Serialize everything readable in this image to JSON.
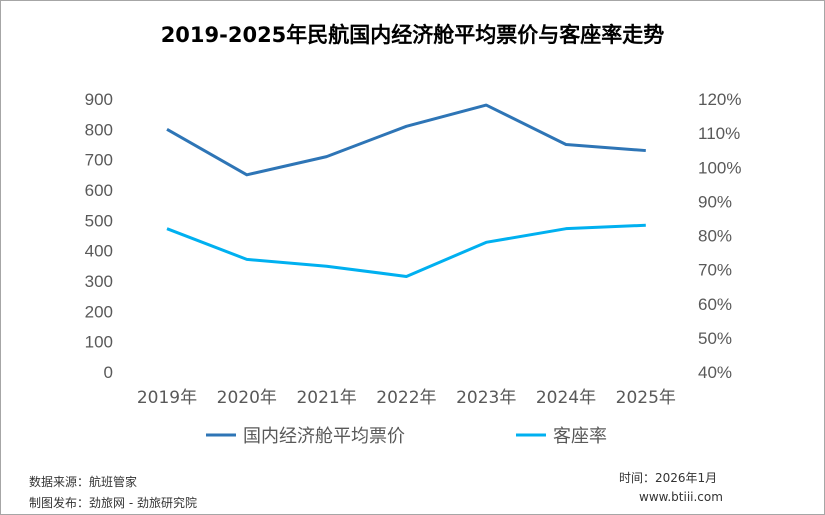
{
  "chart_data": {
    "type": "line",
    "title": "2019-2025年民航国内经济舱平均票价与客座率走势",
    "categories": [
      "2019年",
      "2020年",
      "2021年",
      "2022年",
      "2023年",
      "2024年",
      "2025年"
    ],
    "series": [
      {
        "name": "国内经济舱平均票价",
        "axis": "left",
        "color": "#2e75b6",
        "values": [
          800,
          650,
          710,
          810,
          880,
          750,
          730
        ]
      },
      {
        "name": "客座率",
        "axis": "right",
        "color": "#00b0f0",
        "values": [
          82,
          73,
          71,
          68,
          78,
          82,
          83
        ]
      }
    ],
    "left_axis": {
      "ylim": [
        0,
        900
      ],
      "ticks": [
        "0",
        "100",
        "200",
        "300",
        "400",
        "500",
        "600",
        "700",
        "800",
        "900"
      ]
    },
    "right_axis": {
      "ylim": [
        40,
        120
      ],
      "ticks": [
        "40%",
        "50%",
        "60%",
        "70%",
        "80%",
        "90%",
        "100%",
        "110%",
        "120%"
      ]
    },
    "legend": "bottom",
    "grid": false
  },
  "footer": {
    "source": "数据来源：航班管家",
    "producer": "制图发布：劲旅网 - 劲旅研究院",
    "time": "时间：2026年1月",
    "site": "www.btiii.com"
  }
}
